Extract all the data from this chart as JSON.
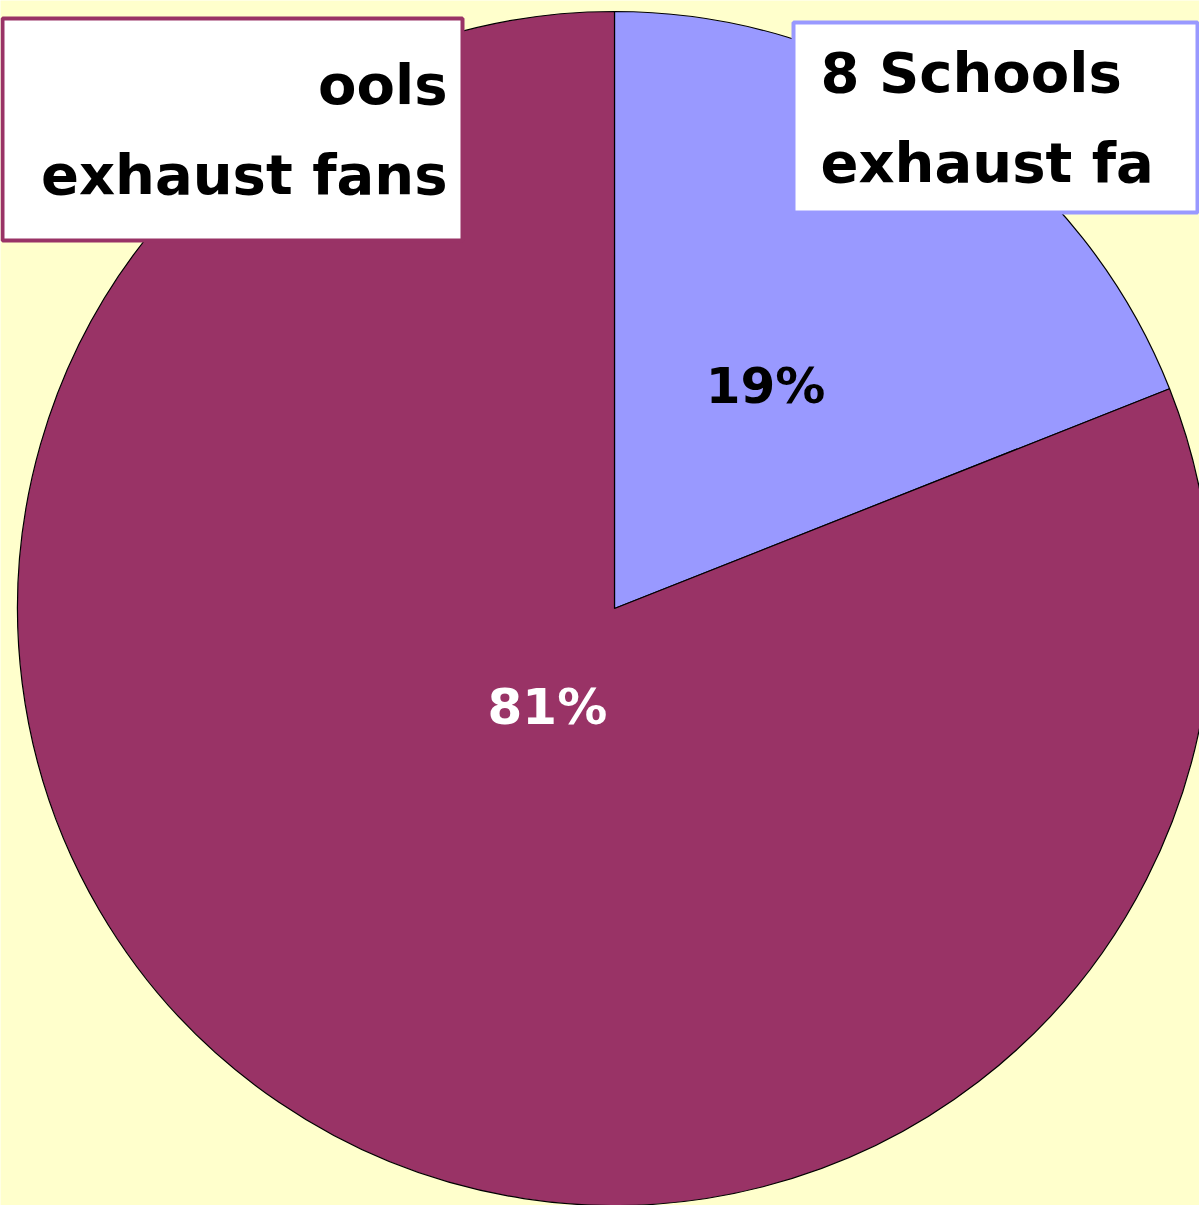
{
  "chart_data": {
    "type": "pie",
    "categories": [
      "8 Schools\nexhaust fa",
      "ools\nexhaust fans"
    ],
    "values": [
      19,
      81
    ],
    "colors": [
      "#9999ff",
      "#993366"
    ],
    "value_labels": [
      "19%",
      "81%"
    ]
  }
}
